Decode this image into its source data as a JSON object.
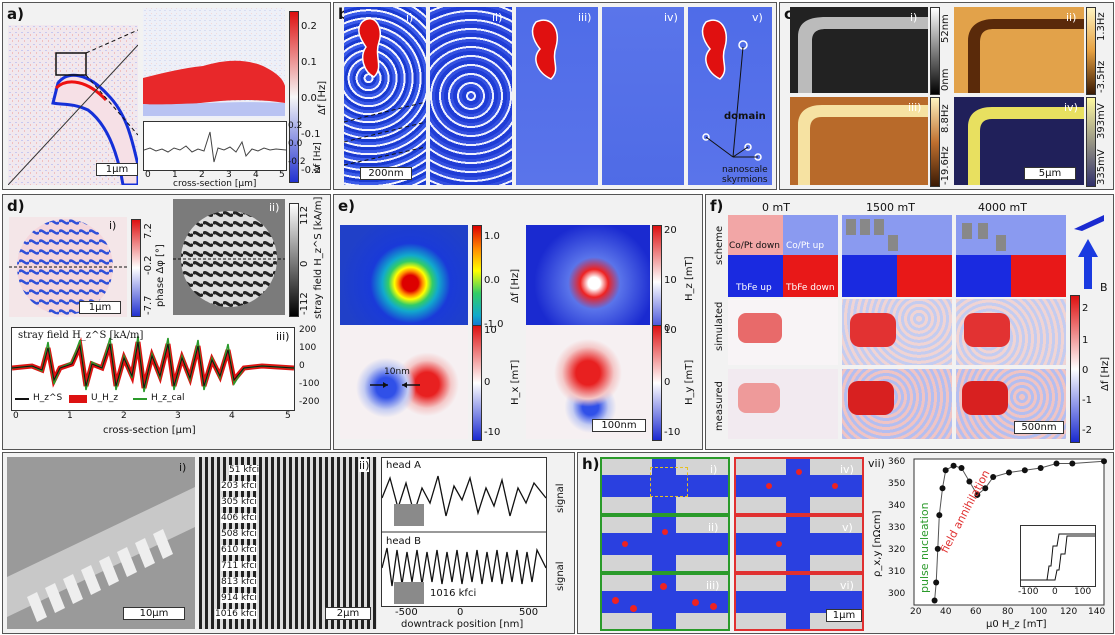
{
  "panels": {
    "a": {
      "label": "a)",
      "scale_bar": "1µm",
      "colorbar_ticks": [
        "0.2",
        "0.1",
        "0.0",
        "-0.1",
        "-0.2"
      ],
      "colorbar_label": "Δf [Hz]",
      "inset_ticks": [
        "0.2",
        "0.0",
        "-0.2"
      ],
      "inset_ylabel": "Δf [Hz]",
      "inset_xticks": [
        "0",
        "1",
        "2",
        "3",
        "4",
        "5"
      ],
      "inset_xlabel": "cross-section [µm]"
    },
    "b": {
      "label": "b)",
      "subs": [
        "i)",
        "ii)",
        "iii)",
        "iv)",
        "v)"
      ],
      "scale_bar": "200nm",
      "domain_label": "domain",
      "skyrmion_label": "nanoscale\nskyrmions"
    },
    "c": {
      "label": "c)",
      "subs": [
        "i)",
        "ii)",
        "iii)",
        "iv)"
      ],
      "bar1_top": "52nm",
      "bar1_bottom": "0nm",
      "bar2_top": "1.3Hz",
      "bar2_bottom": "-3.5Hz",
      "bar3_top": "8.8Hz",
      "bar3_bottom": "-19.6Hz",
      "bar4_top": "393mV",
      "bar4_bottom": "335mV",
      "scale_bar": "5µm"
    },
    "d": {
      "label": "d)",
      "subs": [
        "i)",
        "ii)",
        "iii)"
      ],
      "scale_bar": "1µm",
      "bar1_ticks": [
        "7.2",
        "-0.2",
        "-7.7"
      ],
      "bar1_label": "phase Δφ [°]",
      "bar2_ticks": [
        "112",
        "0",
        "-112"
      ],
      "bar2_label": "stray field H_z^S [kA/m]",
      "plot_title": "stray field H_z^S [kA/m]",
      "plot_yticks": [
        "200",
        "100",
        "0",
        "-100",
        "-200"
      ],
      "plot_xticks": [
        "0",
        "1",
        "2",
        "3",
        "4",
        "5"
      ],
      "plot_xlabel": "cross-section [µm]",
      "legend": [
        "H_z^S",
        "U_H_z",
        "H_z_cal"
      ]
    },
    "e": {
      "label": "e)",
      "bar1_ticks": [
        "1.0",
        "0.0",
        "-1.0"
      ],
      "bar1_label": "Δf [Hz]",
      "bar2_ticks": [
        "20",
        "10",
        "0"
      ],
      "bar2_label": "H_z [mT]",
      "bar3_ticks": [
        "10",
        "0",
        "-10"
      ],
      "bar3_label": "H_x [mT]",
      "bar4_ticks": [
        "10",
        "0",
        "-10"
      ],
      "bar4_label": "H_y [mT]",
      "annotation": "10nm",
      "scale_bar": "100nm"
    },
    "f": {
      "label": "f)",
      "fields": [
        "0 mT",
        "1500 mT",
        "4000 mT"
      ],
      "rows": [
        "scheme",
        "simulated",
        "measured"
      ],
      "layer_labels": [
        "Co/Pt down",
        "Co/Pt up",
        "TbFe up",
        "TbFe down"
      ],
      "bar_ticks": [
        "2",
        "1",
        "0",
        "-1",
        "-2"
      ],
      "bar_label": "Δf [Hz]",
      "B_label": "B",
      "scale_bar": "500nm"
    },
    "g": {
      "label": "g)",
      "subs": [
        "i)",
        "ii)"
      ],
      "scale_bar1": "10µm",
      "densities": [
        "51 kfci",
        "203 kfci",
        "305 kfci",
        "406 kfci",
        "508 kfci",
        "610 kfci",
        "711 kfci",
        "813 kfci",
        "914 kfci",
        "1016 kfci"
      ],
      "scale_bar2": "2µm",
      "headA": "head A",
      "headB": "head B",
      "inset_label": "1016 kfci",
      "signal_label": "signal",
      "xticks": [
        "-500",
        "0",
        "500"
      ],
      "xlabel": "downtrack position [nm]"
    },
    "h": {
      "label": "h)",
      "subs": [
        "i)",
        "ii)",
        "iii)",
        "iv)",
        "v)",
        "vi)",
        "vii)"
      ],
      "pulse_label": "pulse nucleation",
      "annihilation_label": "field annihilation",
      "ylabel": "ρ_x,y [nΩcm]",
      "yticks": [
        "360",
        "350",
        "340",
        "330",
        "320",
        "310",
        "300"
      ],
      "xticks": [
        "20",
        "40",
        "60",
        "80",
        "100",
        "120",
        "140"
      ],
      "xlabel": "µ0 H_z [mT]",
      "inset_xticks": [
        "-100",
        "0",
        "100"
      ],
      "scale_bar": "1µm"
    }
  },
  "chart_data": {
    "type": "scatter",
    "title": "",
    "xlabel": "µ0 H_z [mT]",
    "ylabel": "ρ_x,y [nΩcm]",
    "xlim": [
      20,
      140
    ],
    "ylim": [
      300,
      365
    ],
    "series": [
      {
        "values_x": [
          33,
          34,
          35,
          36,
          38,
          40,
          45,
          50,
          55,
          60,
          65,
          70,
          80,
          90,
          100,
          110,
          120,
          140
        ],
        "values_y": [
          302,
          310,
          325,
          340,
          352,
          360,
          362,
          361,
          355,
          349,
          352,
          357,
          359,
          360,
          361,
          363,
          363,
          364
        ]
      }
    ]
  },
  "colors": {
    "red": "#e11",
    "blue": "#1530d8",
    "green_frame": "#2a9a2a",
    "red_frame": "#e03030",
    "dark_line": "#111"
  }
}
